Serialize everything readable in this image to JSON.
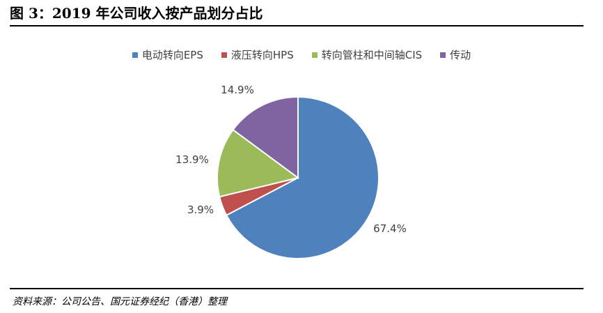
{
  "figure": {
    "title": "图 3：2019 年公司收入按产品划分占比",
    "source": "资料来源：公司公告、国元证券经纪（香港）整理"
  },
  "chart_data": {
    "type": "pie",
    "title": "",
    "legend_position": "top",
    "start_angle_deg": 0,
    "direction": "clockwise",
    "slices": [
      {
        "name": "电动转向EPS",
        "value": 67.4,
        "label": "67.4%",
        "color": "#4F81BD"
      },
      {
        "name": "液压转向HPS",
        "value": 3.9,
        "label": "3.9%",
        "color": "#C0504D"
      },
      {
        "name": "转向管柱和中间轴CIS",
        "value": 13.9,
        "label": "13.9%",
        "color": "#9BBB59"
      },
      {
        "name": "传动",
        "value": 14.9,
        "label": "14.9%",
        "color": "#8064A2"
      }
    ]
  }
}
